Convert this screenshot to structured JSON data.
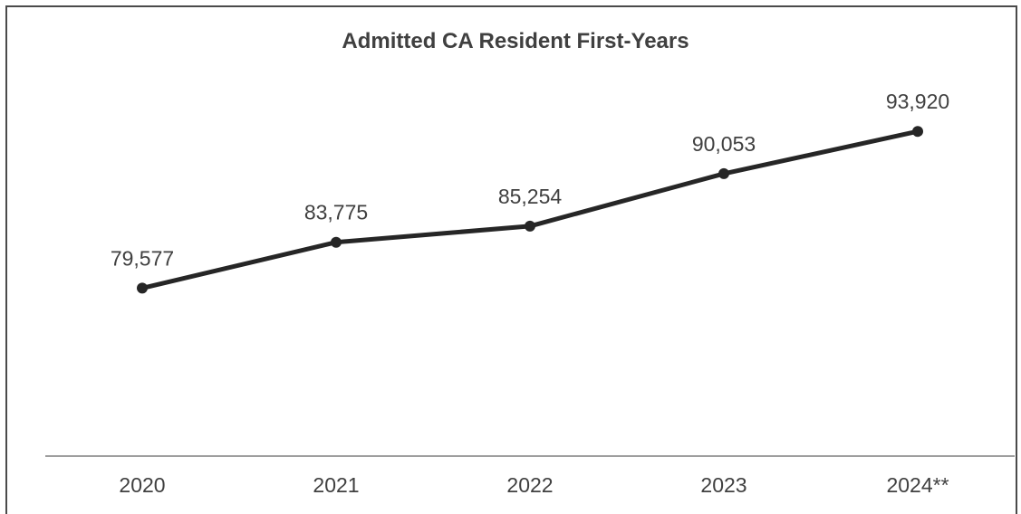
{
  "chart_data": {
    "type": "line",
    "title": "Admitted CA Resident First-Years",
    "categories": [
      "2020",
      "2021",
      "2022",
      "2023",
      "2024**"
    ],
    "series": [
      {
        "values": [
          79577,
          83775,
          85254,
          90053,
          93920
        ],
        "labels": [
          "79,577",
          "83,775",
          "85,254",
          "90,053",
          "93,920"
        ]
      }
    ],
    "ylim": [
      64200,
      98000
    ],
    "grid": false,
    "legend": "none",
    "colors": {
      "line": "#262626",
      "text": "#404040",
      "axis": "#9e9e9e",
      "border": "#4a4a4a"
    }
  }
}
